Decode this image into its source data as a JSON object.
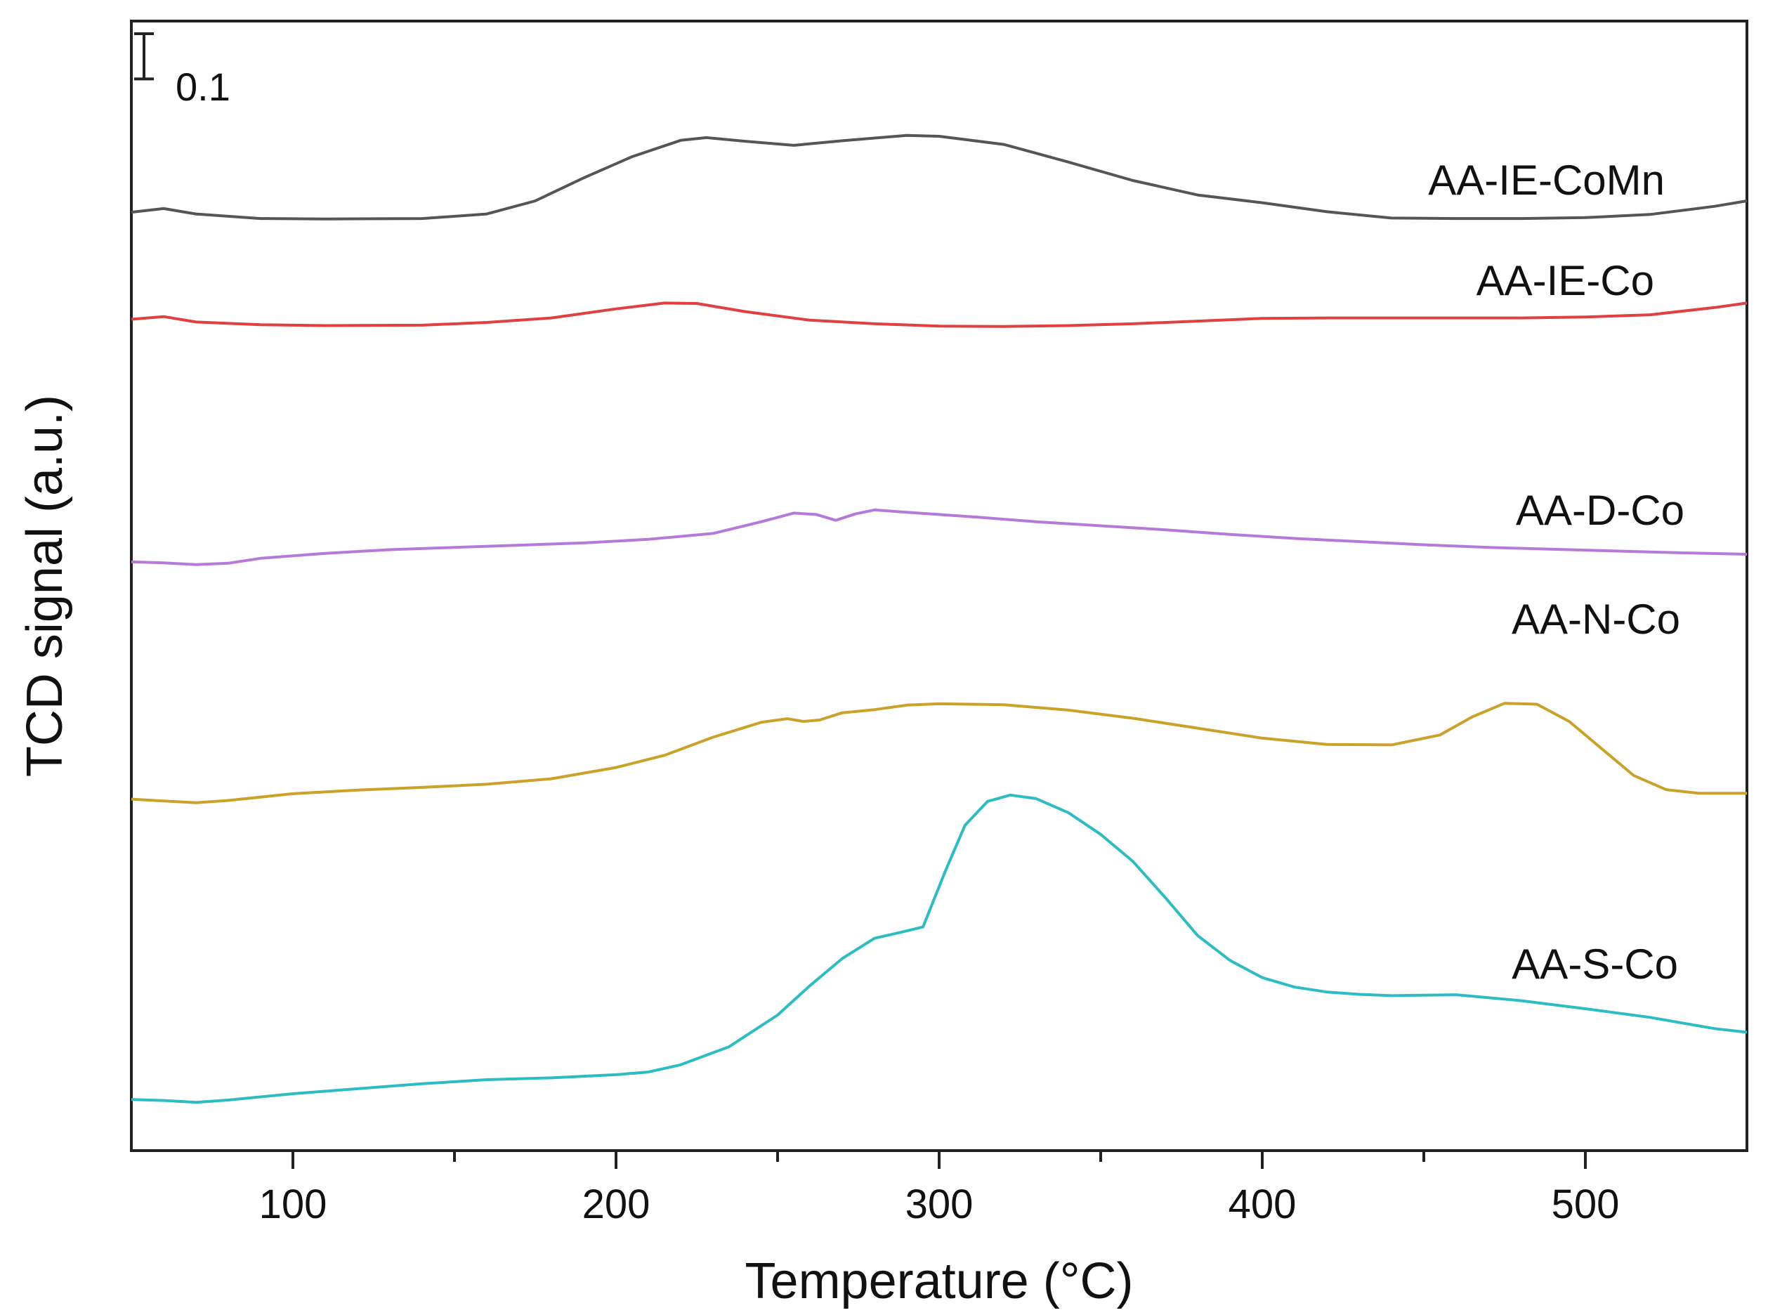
{
  "chart_data": {
    "type": "line",
    "title": "",
    "xlabel": "Temperature (°C)",
    "ylabel": "TCD signal (a.u.)",
    "xlim": [
      50,
      550
    ],
    "ylim": [
      0,
      2.5
    ],
    "x_ticks": [
      100,
      200,
      300,
      400,
      500
    ],
    "y_ticks_shown": false,
    "scale_bar": {
      "label": "0.1",
      "value": 0.1
    },
    "series": [
      {
        "name": "AA-IE-CoMn",
        "color": "#555555",
        "points": [
          [
            50,
            2.077
          ],
          [
            60,
            2.085
          ],
          [
            70,
            2.073
          ],
          [
            90,
            2.063
          ],
          [
            110,
            2.062
          ],
          [
            140,
            2.063
          ],
          [
            160,
            2.073
          ],
          [
            175,
            2.102
          ],
          [
            190,
            2.153
          ],
          [
            205,
            2.2
          ],
          [
            220,
            2.236
          ],
          [
            228,
            2.242
          ],
          [
            240,
            2.234
          ],
          [
            255,
            2.225
          ],
          [
            270,
            2.235
          ],
          [
            290,
            2.247
          ],
          [
            300,
            2.245
          ],
          [
            320,
            2.227
          ],
          [
            340,
            2.188
          ],
          [
            360,
            2.147
          ],
          [
            380,
            2.115
          ],
          [
            400,
            2.098
          ],
          [
            420,
            2.078
          ],
          [
            440,
            2.064
          ],
          [
            460,
            2.063
          ],
          [
            480,
            2.063
          ],
          [
            500,
            2.065
          ],
          [
            520,
            2.072
          ],
          [
            540,
            2.09
          ],
          [
            550,
            2.102
          ]
        ]
      },
      {
        "name": "AA-IE-Co",
        "color": "#e04040",
        "points": [
          [
            50,
            1.84
          ],
          [
            60,
            1.846
          ],
          [
            70,
            1.834
          ],
          [
            90,
            1.828
          ],
          [
            110,
            1.826
          ],
          [
            140,
            1.827
          ],
          [
            160,
            1.833
          ],
          [
            180,
            1.843
          ],
          [
            200,
            1.863
          ],
          [
            215,
            1.876
          ],
          [
            225,
            1.875
          ],
          [
            240,
            1.857
          ],
          [
            260,
            1.838
          ],
          [
            280,
            1.83
          ],
          [
            300,
            1.825
          ],
          [
            320,
            1.824
          ],
          [
            340,
            1.826
          ],
          [
            360,
            1.83
          ],
          [
            380,
            1.836
          ],
          [
            400,
            1.842
          ],
          [
            420,
            1.843
          ],
          [
            440,
            1.843
          ],
          [
            460,
            1.843
          ],
          [
            480,
            1.843
          ],
          [
            500,
            1.845
          ],
          [
            520,
            1.85
          ],
          [
            540,
            1.866
          ],
          [
            550,
            1.876
          ]
        ]
      },
      {
        "name": "AA-D-Co",
        "color": "#b57ad9",
        "points": [
          [
            50,
            1.303
          ],
          [
            60,
            1.301
          ],
          [
            70,
            1.297
          ],
          [
            80,
            1.3
          ],
          [
            90,
            1.311
          ],
          [
            110,
            1.322
          ],
          [
            130,
            1.33
          ],
          [
            150,
            1.335
          ],
          [
            170,
            1.34
          ],
          [
            190,
            1.345
          ],
          [
            210,
            1.353
          ],
          [
            230,
            1.366
          ],
          [
            245,
            1.392
          ],
          [
            255,
            1.411
          ],
          [
            262,
            1.408
          ],
          [
            268,
            1.395
          ],
          [
            274,
            1.409
          ],
          [
            280,
            1.418
          ],
          [
            290,
            1.413
          ],
          [
            310,
            1.403
          ],
          [
            330,
            1.392
          ],
          [
            350,
            1.383
          ],
          [
            370,
            1.374
          ],
          [
            390,
            1.364
          ],
          [
            410,
            1.355
          ],
          [
            430,
            1.348
          ],
          [
            450,
            1.341
          ],
          [
            470,
            1.335
          ],
          [
            490,
            1.331
          ],
          [
            510,
            1.327
          ],
          [
            530,
            1.323
          ],
          [
            550,
            1.32
          ]
        ]
      },
      {
        "name": "AA-N-Co",
        "color": "#c9a227",
        "points": [
          [
            50,
            0.778
          ],
          [
            60,
            0.774
          ],
          [
            70,
            0.77
          ],
          [
            80,
            0.775
          ],
          [
            100,
            0.79
          ],
          [
            120,
            0.798
          ],
          [
            140,
            0.804
          ],
          [
            160,
            0.811
          ],
          [
            180,
            0.823
          ],
          [
            200,
            0.848
          ],
          [
            215,
            0.875
          ],
          [
            230,
            0.915
          ],
          [
            245,
            0.948
          ],
          [
            253,
            0.956
          ],
          [
            258,
            0.95
          ],
          [
            263,
            0.953
          ],
          [
            270,
            0.969
          ],
          [
            280,
            0.976
          ],
          [
            290,
            0.986
          ],
          [
            300,
            0.989
          ],
          [
            320,
            0.987
          ],
          [
            340,
            0.975
          ],
          [
            360,
            0.957
          ],
          [
            380,
            0.935
          ],
          [
            400,
            0.913
          ],
          [
            420,
            0.899
          ],
          [
            440,
            0.898
          ],
          [
            455,
            0.92
          ],
          [
            465,
            0.96
          ],
          [
            475,
            0.99
          ],
          [
            485,
            0.988
          ],
          [
            495,
            0.95
          ],
          [
            505,
            0.89
          ],
          [
            515,
            0.83
          ],
          [
            525,
            0.799
          ],
          [
            535,
            0.791
          ],
          [
            550,
            0.791
          ]
        ]
      },
      {
        "name": "AA-S-Co",
        "color": "#2bbcc4",
        "points": [
          [
            50,
            0.113
          ],
          [
            60,
            0.111
          ],
          [
            70,
            0.107
          ],
          [
            80,
            0.112
          ],
          [
            100,
            0.126
          ],
          [
            120,
            0.137
          ],
          [
            140,
            0.148
          ],
          [
            160,
            0.157
          ],
          [
            180,
            0.161
          ],
          [
            200,
            0.168
          ],
          [
            210,
            0.174
          ],
          [
            220,
            0.19
          ],
          [
            235,
            0.23
          ],
          [
            250,
            0.3
          ],
          [
            260,
            0.365
          ],
          [
            270,
            0.425
          ],
          [
            280,
            0.47
          ],
          [
            288,
            0.483
          ],
          [
            295,
            0.495
          ],
          [
            302,
            0.62
          ],
          [
            308,
            0.72
          ],
          [
            315,
            0.773
          ],
          [
            322,
            0.787
          ],
          [
            330,
            0.779
          ],
          [
            340,
            0.748
          ],
          [
            350,
            0.7
          ],
          [
            360,
            0.64
          ],
          [
            370,
            0.56
          ],
          [
            380,
            0.476
          ],
          [
            390,
            0.421
          ],
          [
            400,
            0.383
          ],
          [
            410,
            0.362
          ],
          [
            420,
            0.351
          ],
          [
            430,
            0.346
          ],
          [
            440,
            0.343
          ],
          [
            460,
            0.345
          ],
          [
            480,
            0.332
          ],
          [
            500,
            0.314
          ],
          [
            520,
            0.295
          ],
          [
            540,
            0.27
          ],
          [
            550,
            0.262
          ]
        ]
      }
    ]
  }
}
